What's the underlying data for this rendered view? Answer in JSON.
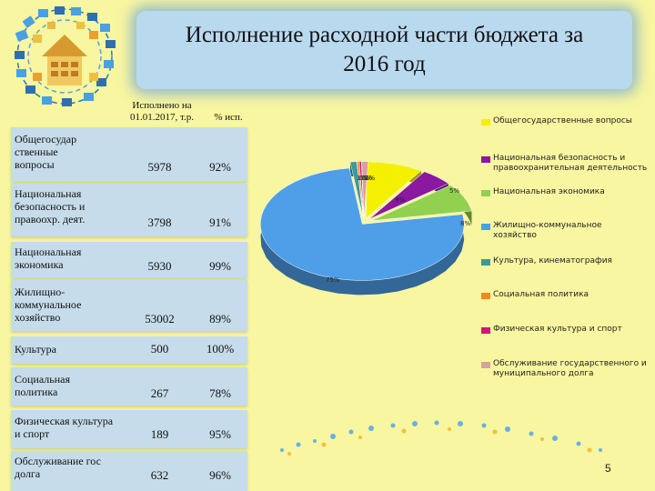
{
  "title_line1": "Исполнение расходной части бюджета за",
  "title_line2": "2016 год",
  "table": {
    "header_executed": "Исполнено на 01.01.2017, т.р.",
    "header_percent": "% исп.",
    "rows": [
      {
        "label": "Общегосудар ственные вопросы",
        "value": "5978",
        "percent": "92%"
      },
      {
        "label": "Национальная безопасность и правоохр. деят.",
        "value": "3798",
        "percent": "91%"
      },
      {
        "label": "Национальная экономика",
        "value": "5930",
        "percent": "99%"
      },
      {
        "label": "Жилищно-коммунальное хозяйство",
        "value": "53002",
        "percent": "89%"
      },
      {
        "label": "Культура",
        "value": "500",
        "percent": "100%"
      },
      {
        "label": "Социальная политика",
        "value": "267",
        "percent": "78%"
      },
      {
        "label": "Физическая культура и спорт",
        "value": "189",
        "percent": "95%"
      },
      {
        "label": "Обслуживание гос долга",
        "value": "632",
        "percent": "96%"
      }
    ]
  },
  "chart_data": {
    "type": "pie",
    "style": "3d exploded",
    "slices": [
      {
        "name": "Общегосударственные вопросы",
        "value": 9,
        "label": "9%",
        "color": "#f4f000"
      },
      {
        "name": "Национальная безопасность и правоохранительная деятельность",
        "value": 5,
        "label": "5%",
        "color": "#8a18a0"
      },
      {
        "name": "Национальная экономика",
        "value": 8,
        "label": "8%",
        "color": "#92d050"
      },
      {
        "name": "Жилищно-коммунальное хозяйство",
        "value": 75,
        "label": "75%",
        "color": "#4f9ee8"
      },
      {
        "name": "Культура, кинематография",
        "value": 1,
        "label": "1%",
        "color": "#3a9a98"
      },
      {
        "name": "Социальная политика",
        "value": 0,
        "label": "0%",
        "color": "#f08a1c"
      },
      {
        "name": "Физическая культура и спорт",
        "value": 0,
        "label": "0%",
        "color": "#cc1a7a"
      },
      {
        "name": "Обслуживание государственного и муниципального долга",
        "value": 1,
        "label": "1%",
        "color": "#d8a0a0"
      }
    ],
    "legend_position": "right"
  },
  "page_number": "5"
}
